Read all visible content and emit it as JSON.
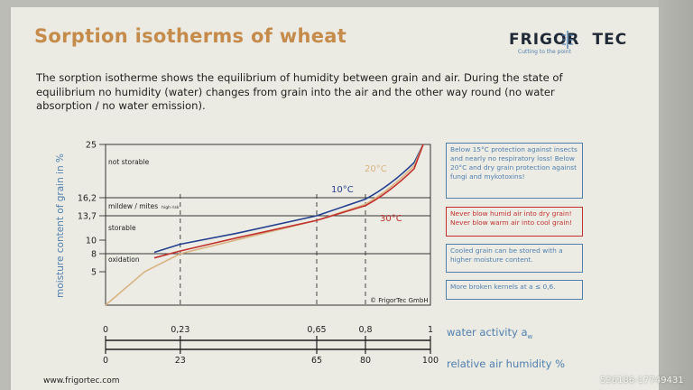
{
  "header": {
    "title": "Sorption isotherms of wheat",
    "logo_left": "FRIGOR",
    "logo_right": "TEC",
    "logo_tagline": "Cutting to the point"
  },
  "intro": "The sorption isotherme shows the equilibrium of humidity between grain and air. During the state of equilibrium no humidity (water) changes from grain into the air and the other way round (no water absorption / no water emission).",
  "chart_data": {
    "type": "line",
    "ylabel": "moisture content of grain in %",
    "y_ticks": [
      "25",
      "16,2",
      "13,7",
      "10",
      "8",
      "5"
    ],
    "zones": [
      {
        "label": "not storable"
      },
      {
        "label": "mildew / mites",
        "sublabel": "high risk"
      },
      {
        "label": "storable"
      },
      {
        "label": "oxidation"
      }
    ],
    "series": [
      {
        "name": "10°C",
        "color": "#243f8f",
        "x": [
          0.15,
          0.23,
          0.4,
          0.65,
          0.8,
          0.95
        ],
        "y": [
          8.2,
          9.4,
          11.0,
          13.7,
          16.0,
          22.0
        ]
      },
      {
        "name": "20°C",
        "color": "#d9b382",
        "x": [
          0.0,
          0.12,
          0.23,
          0.65,
          0.8,
          0.95
        ],
        "y": [
          0.0,
          5.0,
          8.0,
          13.0,
          15.3,
          21.5
        ]
      },
      {
        "name": "30°C",
        "color": "#c2302d",
        "x": [
          0.15,
          0.23,
          0.4,
          0.65,
          0.8,
          0.95
        ],
        "y": [
          7.3,
          8.4,
          10.3,
          13.0,
          15.1,
          21.0
        ]
      }
    ],
    "marker_lines_x": [
      0.23,
      0.65,
      0.8
    ],
    "copyright": "© FrigorTec GmbH",
    "water_activity_axis": {
      "label": "water activity a",
      "subscript": "w",
      "ticks": [
        "0",
        "0,23",
        "0,65",
        "0,8",
        "1"
      ],
      "values": [
        0,
        0.23,
        0.65,
        0.8,
        1
      ]
    },
    "humidity_axis": {
      "label": "relative air humidity %",
      "ticks": [
        "0",
        "23",
        "65",
        "80",
        "100"
      ],
      "values": [
        0,
        0.23,
        0.65,
        0.8,
        1
      ]
    }
  },
  "notes": [
    {
      "text": "Below 15°C protection against insects and nearly no respiratory loss! Below 20°C and dry grain protection against fungi and mykotoxins!",
      "color": "#4f7fae"
    },
    {
      "text": "Never blow humid air into dry grain! Never blow warm air into cool grain!",
      "color": "#c2302d"
    },
    {
      "text": "Cooled grain can be stored with a higher moisture content.",
      "color": "#4f7fae"
    },
    {
      "text": "More broken kernels at a  ≤ 0,6.",
      "color": "#4f7fae"
    }
  ],
  "footer": {
    "website": "www.frigortec.com",
    "watermark": "526186-17749431"
  }
}
